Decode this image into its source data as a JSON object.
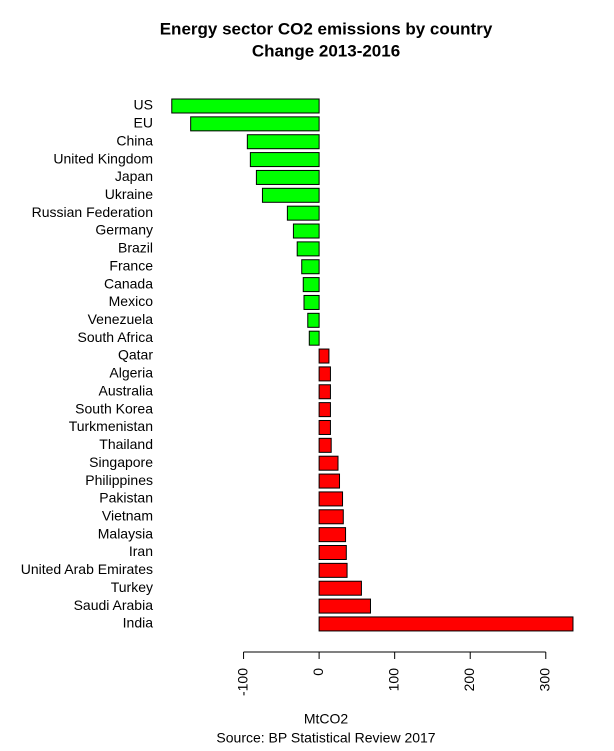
{
  "chart_data": {
    "type": "barh",
    "title": "Energy sector CO2 emissions by country",
    "subtitle": "Change 2013-2016",
    "x_label": "MtCO2",
    "source": "Source: BP Statistical Review 2017",
    "categories": [
      "US",
      "EU",
      "China",
      "United Kingdom",
      "Japan",
      "Ukraine",
      "Russian Federation",
      "Germany",
      "Brazil",
      "France",
      "Canada",
      "Mexico",
      "Venezuela",
      "South Africa",
      "Qatar",
      "Algeria",
      "Australia",
      "South Korea",
      "Turkmenistan",
      "Thailand",
      "Singapore",
      "Philippines",
      "Pakistan",
      "Vietnam",
      "Malaysia",
      "Iran",
      "United Arab Emirates",
      "Turkey",
      "Saudi Arabia",
      "India"
    ],
    "values": [
      -195,
      -170,
      -95,
      -91,
      -83,
      -75,
      -42,
      -34,
      -29,
      -23,
      -21,
      -20,
      -15,
      -13,
      13,
      15,
      15,
      15,
      15,
      16,
      25,
      27,
      31,
      32,
      35,
      36,
      37,
      56,
      68,
      336
    ],
    "colors": [
      "#00ff00",
      "#00ff00",
      "#00ff00",
      "#00ff00",
      "#00ff00",
      "#00ff00",
      "#00ff00",
      "#00ff00",
      "#00ff00",
      "#00ff00",
      "#00ff00",
      "#00ff00",
      "#00ff00",
      "#00ff00",
      "#ff0000",
      "#ff0000",
      "#ff0000",
      "#ff0000",
      "#ff0000",
      "#ff0000",
      "#ff0000",
      "#ff0000",
      "#ff0000",
      "#ff0000",
      "#ff0000",
      "#ff0000",
      "#ff0000",
      "#ff0000",
      "#ff0000",
      "#ff0000"
    ],
    "xlim": [
      -200,
      340
    ],
    "xticks": [
      -100,
      0,
      100,
      200,
      300
    ]
  }
}
